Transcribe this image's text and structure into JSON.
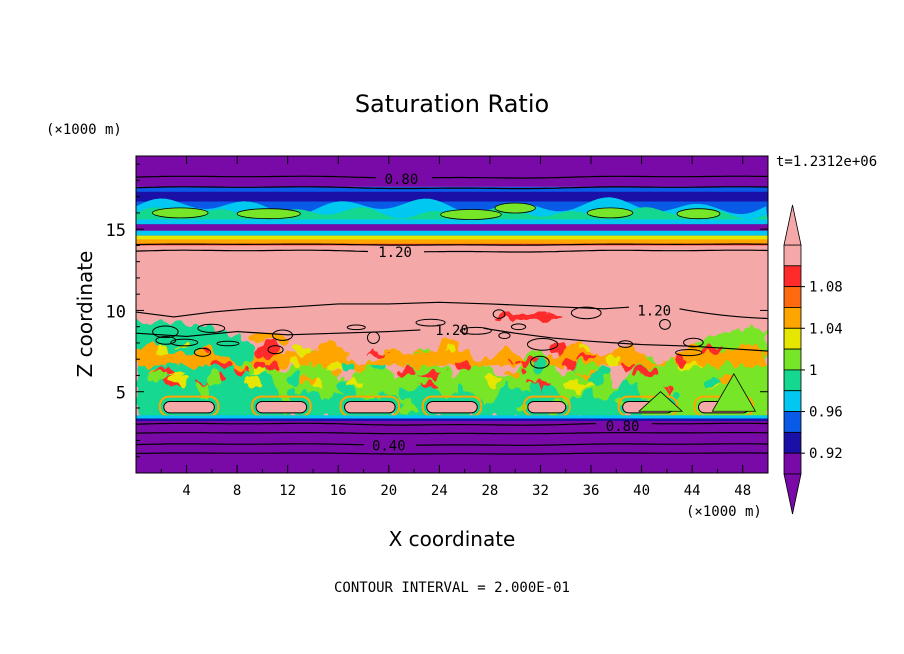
{
  "chart_data": {
    "type": "heatmap",
    "title": "Saturation Ratio",
    "xlabel": "X coordinate",
    "ylabel": "Z coordinate",
    "x_unit_label": "(×1000 m)",
    "y_unit_label": "(×1000 m)",
    "time_label": "t=1.2312e+06",
    "footer": "CONTOUR INTERVAL = 2.000E-01",
    "xlim": [
      0,
      50
    ],
    "ylim": [
      0,
      19.5
    ],
    "x_ticks": [
      4,
      8,
      12,
      16,
      20,
      24,
      28,
      32,
      36,
      40,
      44,
      48
    ],
    "x_tick_labels": [
      "4",
      "8",
      "12",
      "16",
      "20",
      "24",
      "28",
      "32",
      "36",
      "40",
      "44",
      "48"
    ],
    "y_ticks": [
      5,
      10,
      15
    ],
    "y_tick_labels": [
      "5",
      "10",
      "15"
    ],
    "colorbar": {
      "levels": [
        0.9,
        0.92,
        0.94,
        0.96,
        0.98,
        1.0,
        1.02,
        1.04,
        1.06,
        1.08,
        1.1
      ],
      "labels": [
        "0.92",
        "0.96",
        "1",
        "1.04",
        "1.08"
      ],
      "label_values": [
        0.92,
        0.96,
        1.0,
        1.04,
        1.08
      ],
      "colors": [
        "#7a0aa8",
        "#1a10a8",
        "#0a5ae8",
        "#00c8f0",
        "#14d890",
        "#78e628",
        "#e6e600",
        "#ffa500",
        "#ff6a10",
        "#ff2a2a",
        "#f5a8a8"
      ],
      "extend": "both"
    },
    "layers": [
      {
        "z": [
          0.0,
          3.4
        ],
        "value": 0.4,
        "color": "#7a0aa8"
      },
      {
        "z": [
          3.4,
          7.3
        ],
        "value": 0.99,
        "color": "mixed"
      },
      {
        "z": [
          7.3,
          9.0
        ],
        "value": 1.05,
        "color": "mixed"
      },
      {
        "z": [
          9.0,
          14.0
        ],
        "value": 1.2,
        "color": "#f5a8a8"
      },
      {
        "z": [
          14.0,
          14.6
        ],
        "value": 1.07,
        "color": "mixed"
      },
      {
        "z": [
          14.6,
          17.6
        ],
        "value": 0.96,
        "color": "mixed"
      },
      {
        "z": [
          17.6,
          19.5
        ],
        "value": 0.8,
        "color": "#7a0aa8"
      }
    ],
    "contour_labels": [
      {
        "text": "0.80",
        "x": 21,
        "z": 18.1
      },
      {
        "text": "1.20",
        "x": 20.5,
        "z": 13.6
      },
      {
        "text": "1.20",
        "x": 41,
        "z": 10.0
      },
      {
        "text": "1.20",
        "x": 25,
        "z": 8.8
      },
      {
        "text": "0.80",
        "x": 38.5,
        "z": 2.9
      },
      {
        "text": "0.40",
        "x": 20,
        "z": 1.7
      }
    ]
  }
}
